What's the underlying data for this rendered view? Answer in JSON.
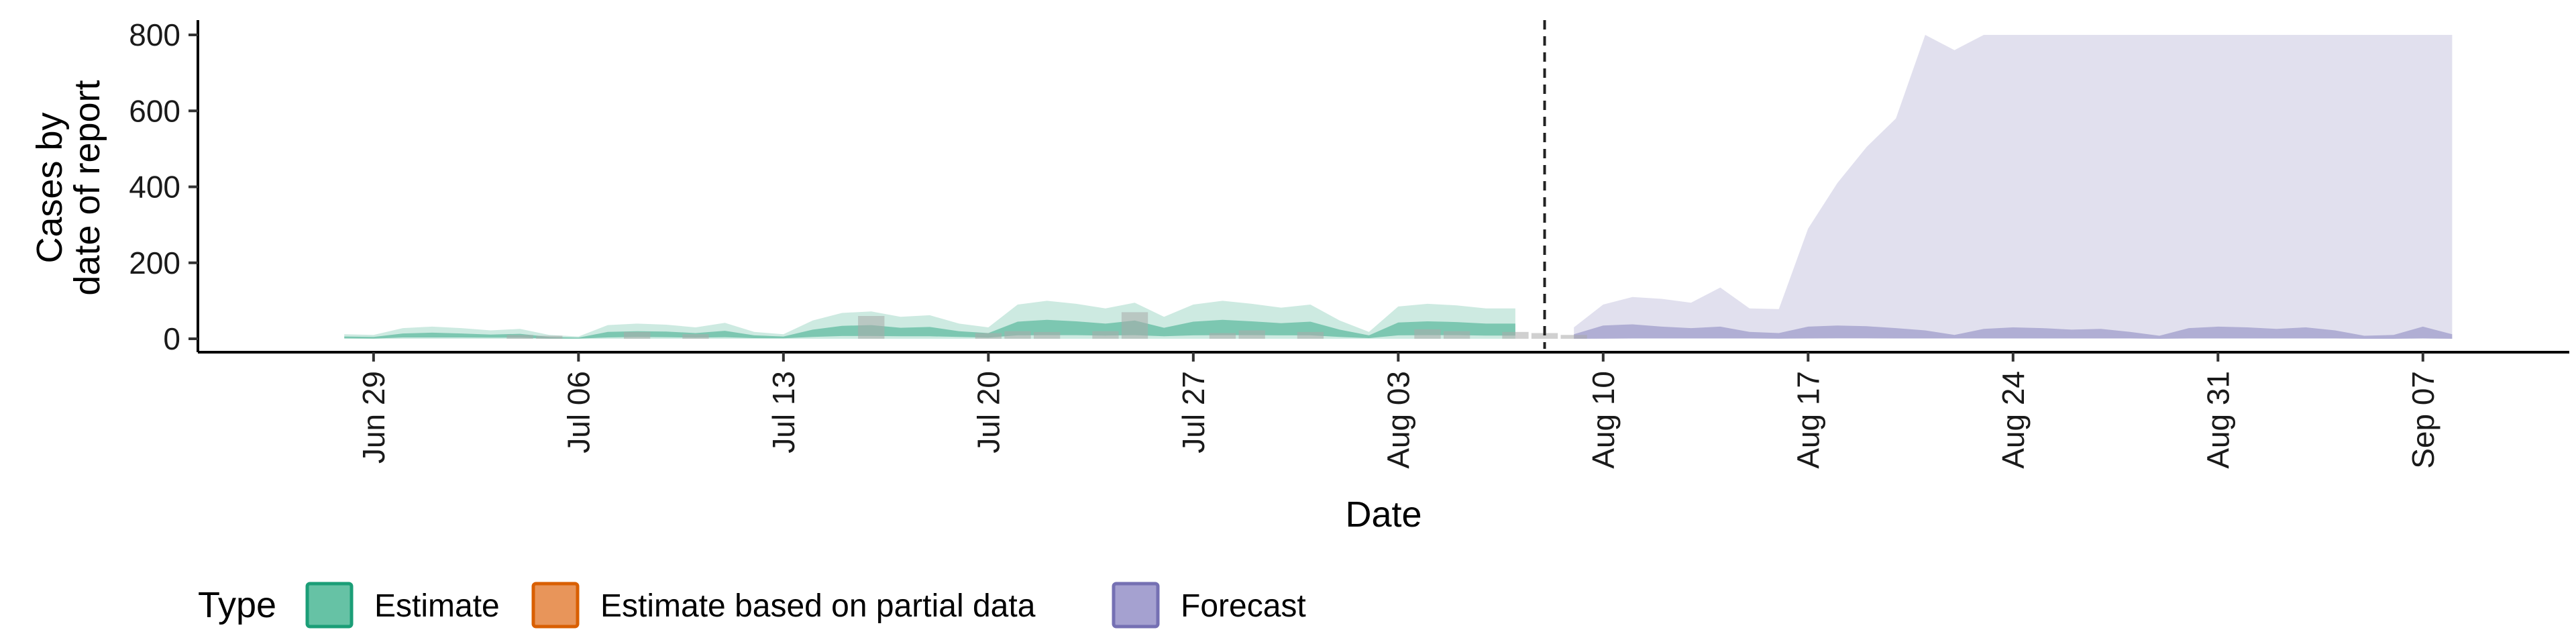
{
  "chart_data": {
    "type": "area",
    "xlabel": "Date",
    "ylabel": "Cases by\ndate of report",
    "ylim": [
      0,
      800
    ],
    "yticks": [
      0,
      200,
      400,
      600,
      800
    ],
    "xlim": [
      "2020-06-23",
      "2020-09-12"
    ],
    "xticks": [
      {
        "date": "2020-06-29",
        "label": "Jun 29"
      },
      {
        "date": "2020-07-06",
        "label": "Jul 06"
      },
      {
        "date": "2020-07-13",
        "label": "Jul 13"
      },
      {
        "date": "2020-07-20",
        "label": "Jul 20"
      },
      {
        "date": "2020-07-27",
        "label": "Jul 27"
      },
      {
        "date": "2020-08-03",
        "label": "Aug 03"
      },
      {
        "date": "2020-08-10",
        "label": "Aug 10"
      },
      {
        "date": "2020-08-17",
        "label": "Aug 17"
      },
      {
        "date": "2020-08-24",
        "label": "Aug 24"
      },
      {
        "date": "2020-08-31",
        "label": "Aug 31"
      },
      {
        "date": "2020-09-07",
        "label": "Sep 07"
      }
    ],
    "vline_date": "2020-08-08",
    "legend": {
      "title": "Type",
      "position": "bottom",
      "entries": [
        {
          "label": "Estimate",
          "fill": "#66c2a5",
          "stroke": "#1b9e77"
        },
        {
          "label": "Estimate based on partial data",
          "fill": "#e8955a",
          "stroke": "#d95f02"
        },
        {
          "label": "Forecast",
          "fill": "#a5a1d0",
          "stroke": "#7570b3"
        }
      ]
    },
    "series": [
      {
        "name": "Estimate",
        "color": "#1b9e77",
        "dates": [
          "2020-06-28",
          "2020-06-29",
          "2020-06-30",
          "2020-07-01",
          "2020-07-02",
          "2020-07-03",
          "2020-07-04",
          "2020-07-05",
          "2020-07-06",
          "2020-07-07",
          "2020-07-08",
          "2020-07-09",
          "2020-07-10",
          "2020-07-11",
          "2020-07-12",
          "2020-07-13",
          "2020-07-14",
          "2020-07-15",
          "2020-07-16",
          "2020-07-17",
          "2020-07-18",
          "2020-07-19",
          "2020-07-20",
          "2020-07-21",
          "2020-07-22",
          "2020-07-23",
          "2020-07-24",
          "2020-07-25",
          "2020-07-26",
          "2020-07-27",
          "2020-07-28",
          "2020-07-29",
          "2020-07-30",
          "2020-07-31",
          "2020-08-01",
          "2020-08-02",
          "2020-08-03",
          "2020-08-04",
          "2020-08-05",
          "2020-08-06",
          "2020-08-07"
        ],
        "upper90": [
          12,
          10,
          28,
          32,
          28,
          22,
          26,
          10,
          6,
          36,
          40,
          37,
          30,
          42,
          18,
          12,
          48,
          68,
          72,
          58,
          62,
          40,
          30,
          90,
          100,
          92,
          80,
          95,
          58,
          90,
          100,
          92,
          82,
          90,
          48,
          18,
          85,
          92,
          88,
          80,
          80
        ],
        "upper50": [
          6,
          5,
          14,
          16,
          14,
          11,
          13,
          5,
          3,
          18,
          20,
          19,
          15,
          21,
          9,
          6,
          24,
          34,
          36,
          29,
          31,
          20,
          15,
          45,
          50,
          46,
          40,
          48,
          29,
          45,
          50,
          46,
          41,
          45,
          24,
          9,
          43,
          46,
          44,
          40,
          40
        ],
        "median": [
          4,
          3,
          10,
          11,
          10,
          8,
          9,
          3,
          2,
          12,
          14,
          13,
          10,
          14,
          6,
          4,
          16,
          23,
          24,
          20,
          21,
          14,
          10,
          30,
          33,
          31,
          27,
          32,
          20,
          30,
          33,
          31,
          28,
          30,
          16,
          6,
          29,
          31,
          30,
          27,
          27
        ]
      },
      {
        "name": "Forecast",
        "color": "#7570b3",
        "dates": [
          "2020-08-09",
          "2020-08-10",
          "2020-08-11",
          "2020-08-12",
          "2020-08-13",
          "2020-08-14",
          "2020-08-15",
          "2020-08-16",
          "2020-08-17",
          "2020-08-18",
          "2020-08-19",
          "2020-08-20",
          "2020-08-21",
          "2020-08-22",
          "2020-08-23",
          "2020-08-24",
          "2020-08-25",
          "2020-08-26",
          "2020-08-27",
          "2020-08-28",
          "2020-08-29",
          "2020-08-30",
          "2020-08-31",
          "2020-09-01",
          "2020-09-02",
          "2020-09-03",
          "2020-09-04",
          "2020-09-05",
          "2020-09-06",
          "2020-09-07",
          "2020-09-08"
        ],
        "upper90": [
          30,
          90,
          110,
          105,
          95,
          135,
          80,
          78,
          290,
          410,
          505,
          580,
          800,
          760,
          800,
          800,
          800,
          800,
          800,
          800,
          800,
          800,
          800,
          800,
          800,
          800,
          800,
          800,
          800,
          800,
          800
        ],
        "upper50": [
          12,
          35,
          38,
          32,
          28,
          32,
          18,
          15,
          32,
          35,
          33,
          28,
          22,
          10,
          26,
          30,
          28,
          24,
          26,
          18,
          8,
          28,
          32,
          30,
          26,
          30,
          22,
          8,
          10,
          32,
          12
        ],
        "median": [
          6,
          18,
          20,
          17,
          15,
          17,
          10,
          8,
          17,
          19,
          18,
          15,
          12,
          6,
          14,
          16,
          15,
          13,
          14,
          10,
          4,
          15,
          17,
          16,
          14,
          16,
          12,
          4,
          5,
          17,
          6
        ]
      }
    ],
    "reported_cases": {
      "color": "#a9a9a9",
      "dates": [
        "2020-07-04",
        "2020-07-05",
        "2020-07-08",
        "2020-07-10",
        "2020-07-16",
        "2020-07-20",
        "2020-07-21",
        "2020-07-22",
        "2020-07-24",
        "2020-07-25",
        "2020-07-28",
        "2020-07-29",
        "2020-07-31",
        "2020-08-04",
        "2020-08-05",
        "2020-08-07",
        "2020-08-08",
        "2020-08-09"
      ],
      "values": [
        10,
        8,
        18,
        12,
        60,
        15,
        20,
        18,
        20,
        70,
        15,
        22,
        18,
        25,
        20,
        18,
        15,
        10
      ]
    }
  }
}
